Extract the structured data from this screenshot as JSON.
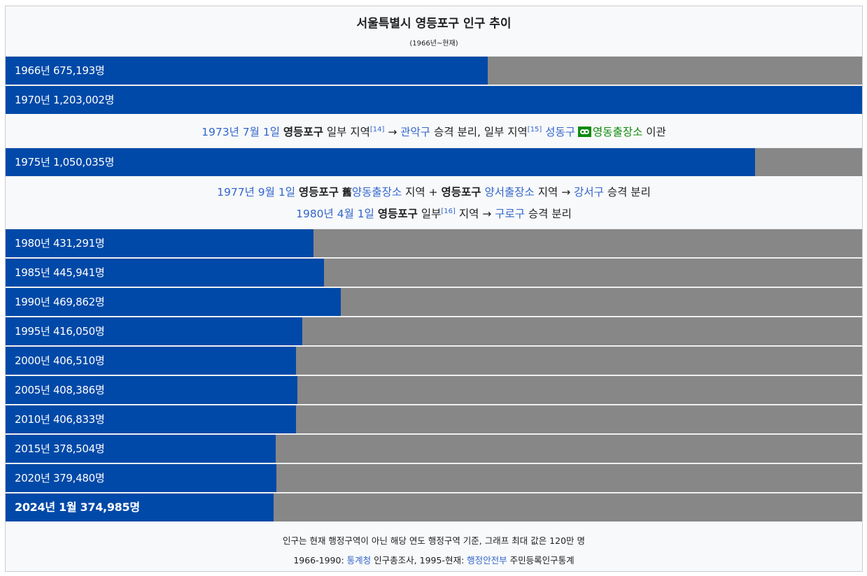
{
  "chart_data": {
    "type": "bar",
    "title": "서울특별시 영등포구 인구 추이",
    "subtitle": "(1966년~현재)",
    "max_value": 1200000,
    "bars": [
      {
        "label": "1966년 675,193명",
        "value": 675193,
        "bold": false
      },
      {
        "label": "1970년 1,203,002명",
        "value": 1203002,
        "bold": false
      },
      {
        "label": "1975년 1,050,035명",
        "value": 1050035,
        "bold": false
      },
      {
        "label": "1980년 431,291명",
        "value": 431291,
        "bold": false
      },
      {
        "label": "1985년 445,941명",
        "value": 445941,
        "bold": false
      },
      {
        "label": "1990년 469,862명",
        "value": 469862,
        "bold": false
      },
      {
        "label": "1995년 416,050명",
        "value": 416050,
        "bold": false
      },
      {
        "label": "2000년 406,510명",
        "value": 406510,
        "bold": false
      },
      {
        "label": "2005년 408,386명",
        "value": 408386,
        "bold": false
      },
      {
        "label": "2010년 406,833명",
        "value": 406833,
        "bold": false
      },
      {
        "label": "2015년 378,504명",
        "value": 378504,
        "bold": false
      },
      {
        "label": "2020년 379,480명",
        "value": 379480,
        "bold": false
      },
      {
        "label": "2024년 1월 374,985명",
        "value": 374985,
        "bold": true
      }
    ],
    "colors": {
      "bar": "#0049a8",
      "track": "#878787",
      "link": "#3366cc",
      "external": "#0c8b0c"
    }
  },
  "events": {
    "e1973": {
      "date": "1973년 7월 1일",
      "district": "영등포구",
      "part1": "일부 지역",
      "ref1": "[14]",
      "arrow": "→",
      "target1": "관악구",
      "text1": "승격 분리, 일부 지역",
      "ref2": "[15]",
      "target2": "성동구",
      "ext_icon": "link-icon",
      "target3": "영동출장소",
      "text2": "이관"
    },
    "e1977": {
      "date": "1977년 9월 1일",
      "district": "영등포구",
      "hanja_icon": "舊",
      "office1": "양동출장소",
      "text1": "지역 +",
      "district2": "영등포구",
      "office2": "양서출장소",
      "text2": "지역 →",
      "target": "강서구",
      "text3": "승격 분리"
    },
    "e1980": {
      "date": "1980년 4월 1일",
      "district": "영등포구",
      "part": "일부",
      "ref": "[16]",
      "text1": "지역 →",
      "target": "구로구",
      "text2": "승격 분리"
    }
  },
  "footer": {
    "line1": "인구는 현재 행정구역이 아닌 해당 연도 행정구역 기준, 그래프 최대 값은 120만 명",
    "line2_prefix": "1966-1990:",
    "line2_src1": "통계청",
    "line2_mid": "인구총조사, 1995-현재:",
    "line2_src2": "행정안전부",
    "line2_suffix": "주민등록인구통계"
  }
}
